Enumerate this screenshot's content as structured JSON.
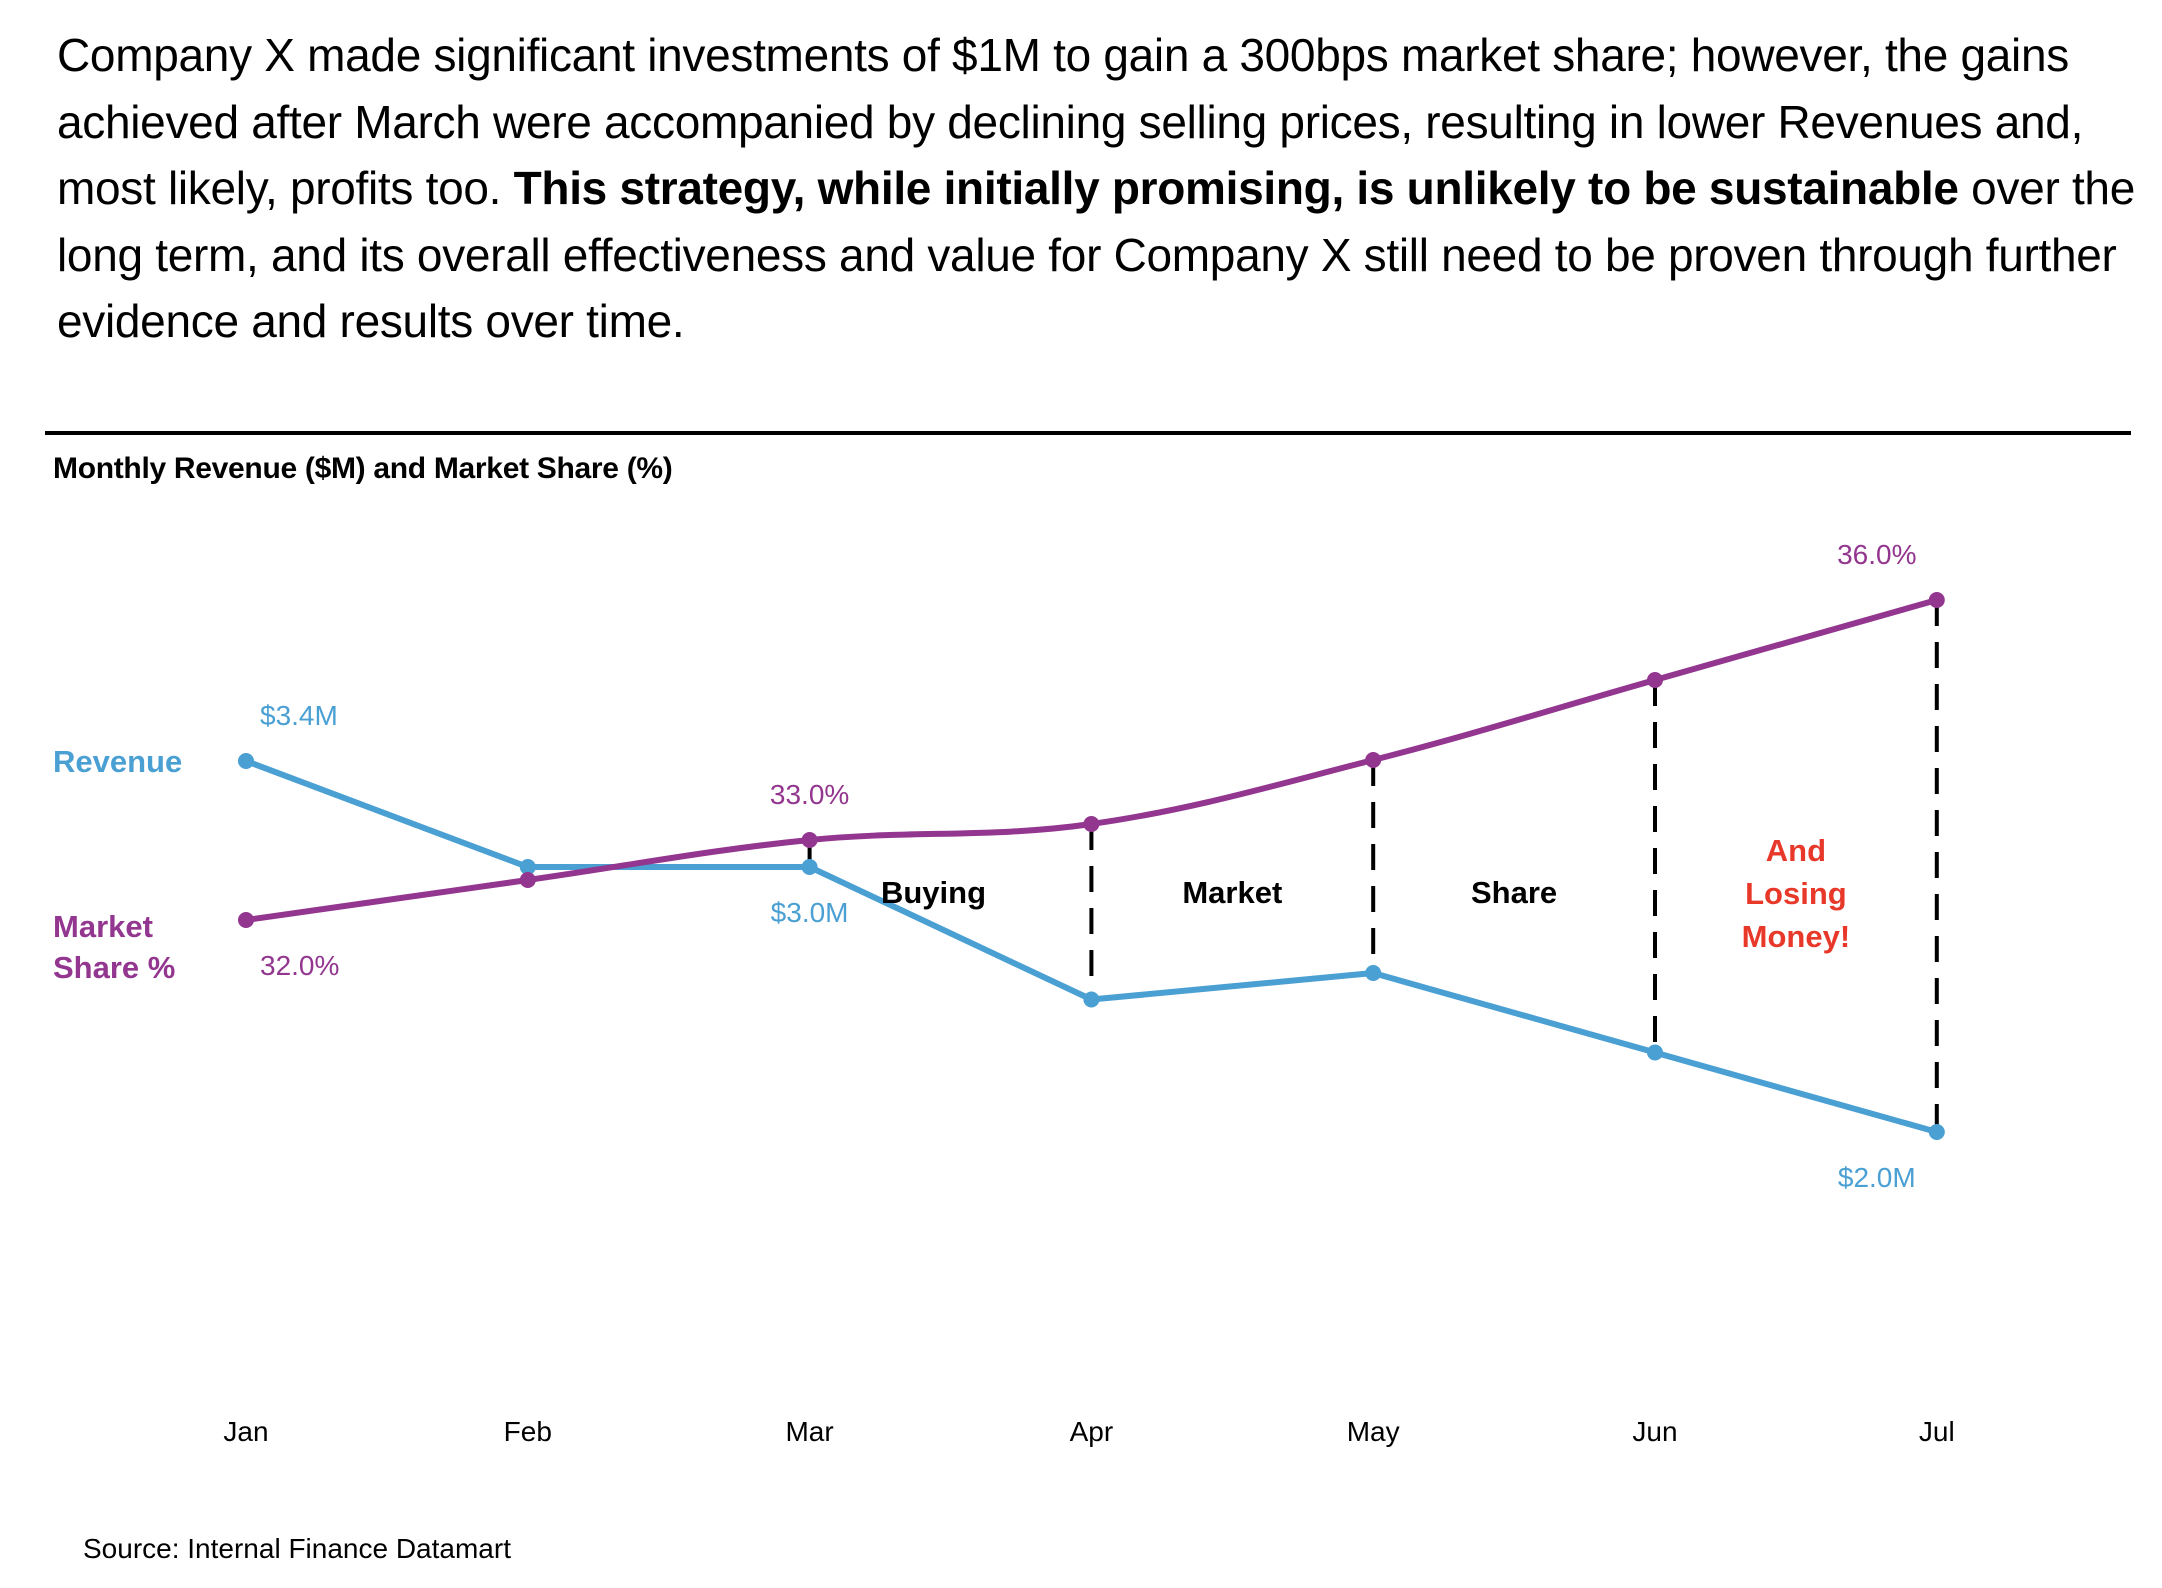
{
  "paragraph": {
    "segments": [
      {
        "text": "Company X made significant investments of $1M to gain a 300bps market share; however, the gains achieved after March were accompanied by declining selling prices, resulting in lower Revenues and, most likely, profits too. ",
        "bold": false
      },
      {
        "text": "This strategy, while initially promising, is unlikely to be sustainable",
        "bold": true
      },
      {
        "text": " over the long term, and its overall effectiveness and value for Company X still need to be proven through further evidence and results over time.",
        "bold": false
      }
    ]
  },
  "source": "Source: Internal Finance Datamart",
  "colors": {
    "revenue": "#4A9FD3",
    "market_share": "#93368F",
    "annotation_red": "#E8382A",
    "annotation_black": "#000000"
  },
  "chart_data": {
    "type": "line",
    "title": "Monthly Revenue ($M) and Market Share (%)",
    "categories": [
      "Jan",
      "Feb",
      "Mar",
      "Apr",
      "May",
      "Jun",
      "Jul"
    ],
    "xlabel": "",
    "ylabel": "",
    "grid": false,
    "series": [
      {
        "name": "Revenue",
        "legend_label": "Revenue",
        "unit": "$M",
        "values": [
          3.4,
          3.0,
          3.0,
          2.5,
          2.6,
          2.3,
          2.0
        ],
        "data_labels": [
          {
            "index": 0,
            "text": "$3.4M",
            "position": "above"
          },
          {
            "index": 2,
            "text": "$3.0M",
            "position": "below"
          },
          {
            "index": 6,
            "text": "$2.0M",
            "position": "below"
          }
        ]
      },
      {
        "name": "Market Share %",
        "legend_label_lines": [
          "Market",
          "Share %"
        ],
        "unit": "%",
        "values": [
          32.0,
          32.5,
          33.0,
          33.2,
          34.0,
          35.0,
          36.0
        ],
        "data_labels": [
          {
            "index": 0,
            "text": "32.0%",
            "position": "below"
          },
          {
            "index": 2,
            "text": "33.0%",
            "position": "above"
          },
          {
            "index": 6,
            "text": "36.0%",
            "position": "above"
          }
        ]
      }
    ],
    "annotations": {
      "gap_lines_at": [
        "Mar",
        "Apr",
        "May",
        "Jun",
        "Jul"
      ],
      "region_labels": [
        {
          "between": [
            "Mar",
            "Apr"
          ],
          "lines": [
            "Buying"
          ],
          "color": "black"
        },
        {
          "between": [
            "Apr",
            "May"
          ],
          "lines": [
            "Market"
          ],
          "color": "black"
        },
        {
          "between": [
            "May",
            "Jun"
          ],
          "lines": [
            "Share"
          ],
          "color": "black"
        },
        {
          "between": [
            "Jun",
            "Jul"
          ],
          "lines": [
            "And",
            "Losing",
            "Money!"
          ],
          "color": "red"
        }
      ]
    }
  }
}
